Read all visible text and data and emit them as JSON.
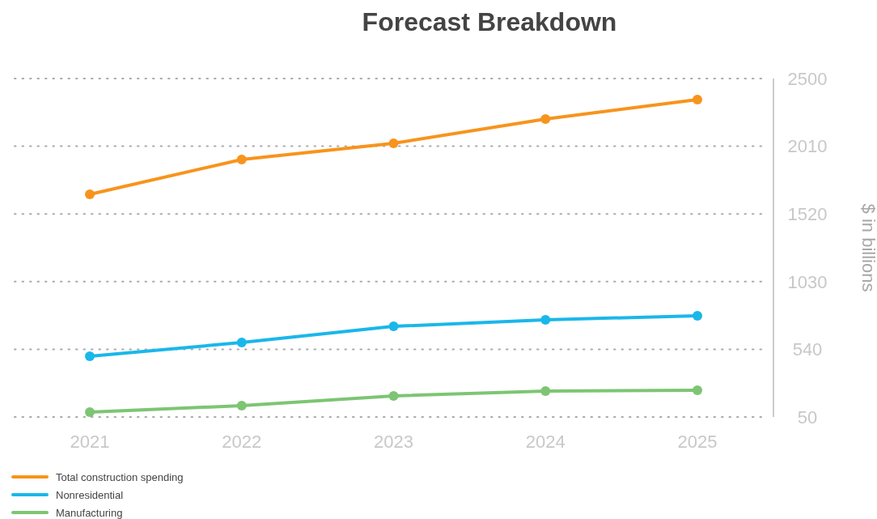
{
  "chart_data": {
    "type": "line",
    "title": "Forecast Breakdown",
    "ylabel": "$ in billions",
    "categories": [
      "2021",
      "2022",
      "2023",
      "2024",
      "2025"
    ],
    "series": [
      {
        "name": "Total construction spending",
        "color": "#f7941d",
        "values": [
          1662,
          1914,
          2031,
          2207,
          2348
        ]
      },
      {
        "name": "Nonresidential",
        "color": "#1ab7ea",
        "values": [
          490,
          589,
          706,
          753,
          783
        ]
      },
      {
        "name": "Manufacturing",
        "color": "#7dc573",
        "values": [
          85,
          132,
          202,
          238,
          243
        ]
      }
    ],
    "ylim": [
      50,
      2500
    ],
    "yticks": [
      50,
      540,
      1030,
      1520,
      2010,
      2500
    ],
    "grid": "y",
    "legend": "bottom left",
    "marker": "circle",
    "line_style": "solid"
  }
}
